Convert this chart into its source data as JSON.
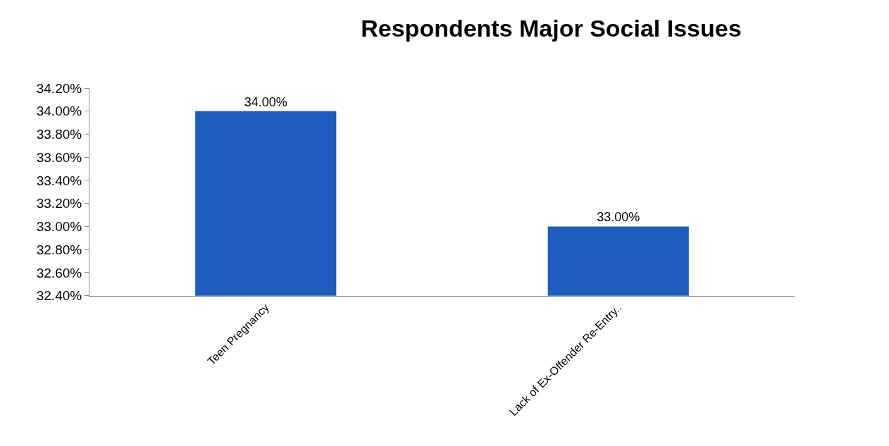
{
  "chart_data": {
    "type": "bar",
    "title": "Respondents Major Social Issues",
    "categories": [
      "Teen Pregnancy",
      "Lack of Ex-Offender Re-Entry.."
    ],
    "values": [
      34,
      33
    ],
    "value_labels": [
      "34.00%",
      "33.00%"
    ],
    "color": "#1f5cc0",
    "ylim": [
      32.4,
      34.2
    ],
    "yticks": [
      {
        "value": 32.4,
        "label": "32.40%"
      },
      {
        "value": 32.6,
        "label": "32.60%"
      },
      {
        "value": 32.8,
        "label": "32.80%"
      },
      {
        "value": 33.0,
        "label": "33.00%"
      },
      {
        "value": 33.2,
        "label": "33.20%"
      },
      {
        "value": 33.4,
        "label": "33.40%"
      },
      {
        "value": 33.6,
        "label": "33.60%"
      },
      {
        "value": 33.8,
        "label": "33.80%"
      },
      {
        "value": 34.0,
        "label": "34.00%"
      },
      {
        "value": 34.2,
        "label": "34.20%"
      }
    ],
    "legend": false
  }
}
